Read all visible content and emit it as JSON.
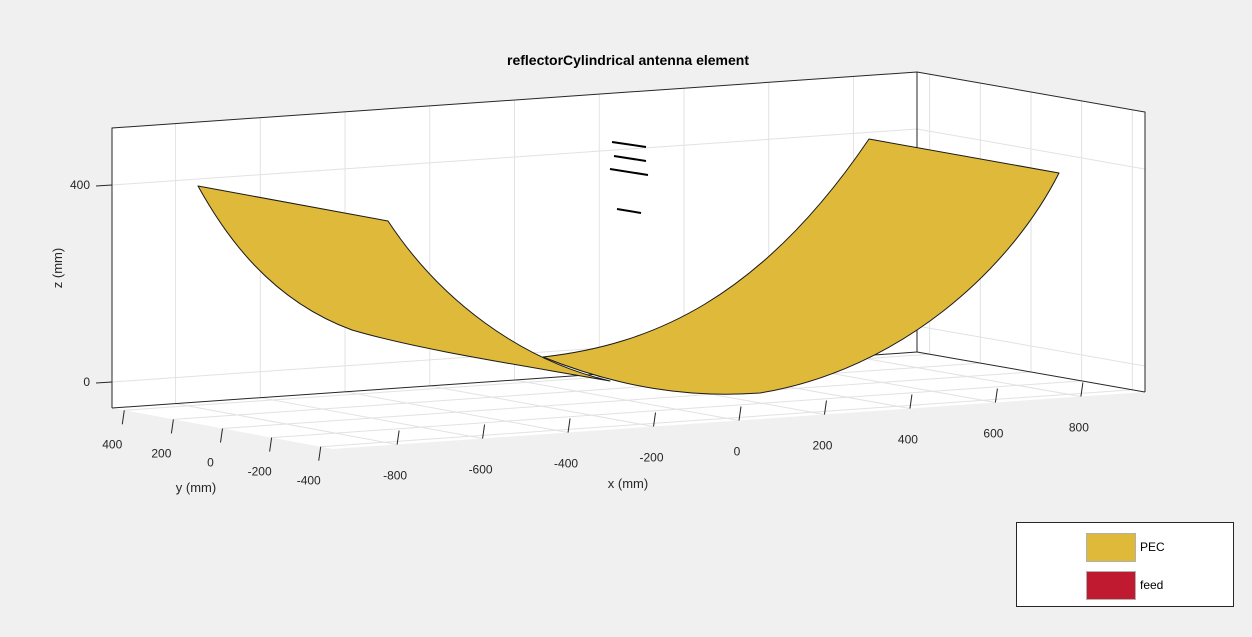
{
  "title": "reflectorCylindrical antenna element",
  "axes": {
    "x_label": "x (mm)",
    "y_label": "y (mm)",
    "z_label": "z (mm)",
    "x_ticks": [
      "-800",
      "-600",
      "-400",
      "-200",
      "0",
      "200",
      "400",
      "600",
      "800"
    ],
    "y_ticks": [
      "400",
      "200",
      "0",
      "-200",
      "-400"
    ],
    "z_ticks": [
      "400",
      "0"
    ],
    "grid": true
  },
  "legend": {
    "placement": "bottom-right",
    "items": [
      {
        "label": "PEC",
        "color": "#dfb93a"
      },
      {
        "label": "feed",
        "color": "#c01a30"
      }
    ]
  },
  "colors": {
    "figure_background": "#f0f0f0",
    "axes_background": "#ffffff",
    "reflector_surface": "#dfb93a",
    "grid": "#e2e2e2",
    "axis_line": "#262626"
  }
}
